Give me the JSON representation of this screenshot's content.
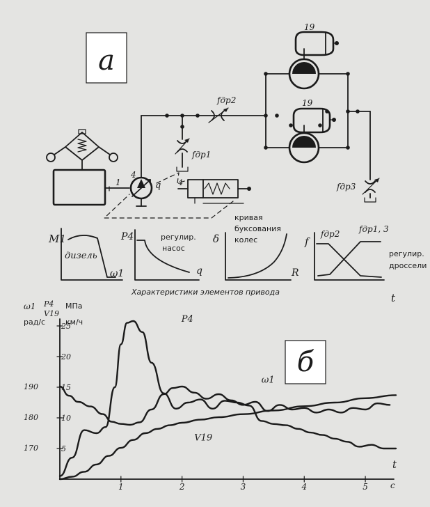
{
  "panel_a": {
    "label": "а",
    "components": {
      "diesel_ref": "1",
      "pump_ref": "4",
      "pump_symbol": "q",
      "regulator_ref": "4",
      "motor_top_ref": "19",
      "motor_bottom_ref": "19",
      "throttle_1": "fдр1",
      "throttle_2": "fдр2",
      "throttle_3": "fдр3"
    },
    "characteristics": {
      "caption": "Характеристики элементов привода",
      "t_label": "t",
      "diesel": {
        "y_label": "M1",
        "x_label": "ω1",
        "text": "дизель"
      },
      "pump": {
        "y_label": "P4",
        "x_label": "q",
        "text_line1": "регулир.",
        "text_line2": "насос"
      },
      "slip": {
        "y_label": "δ",
        "x_label": "R",
        "text_line1": "кривая",
        "text_line2": "буксования",
        "text_line3": "колес"
      },
      "throttles": {
        "y_label": "f",
        "curve1": "fдр2",
        "curve2": "fдр1, 3",
        "text_line1": "регулир.",
        "text_line2": "дроссели"
      }
    }
  },
  "panel_b": {
    "label": "б",
    "axis_headers": {
      "omega": "ω1",
      "p4": "P4",
      "v19": "V19",
      "omega_unit": "рад/с",
      "p_unit": "МПа",
      "v_unit": "км/ч"
    },
    "x_label": "t",
    "x_unit": "с",
    "chart_data": {
      "type": "line",
      "xlabel": "t",
      "x_unit": "с",
      "xlim": [
        0,
        5.5
      ],
      "x_ticks": [
        "1",
        "2",
        "3",
        "4",
        "5"
      ],
      "omega_ticks": [
        "170",
        "180",
        "190"
      ],
      "p_ticks": [
        "5",
        "10",
        "15",
        "20",
        "25"
      ],
      "series": [
        {
          "name": "P4",
          "x": [
            0,
            0.2,
            0.4,
            0.6,
            0.75,
            0.9,
            1.0,
            1.1,
            1.2,
            1.35,
            1.5,
            1.7,
            1.9,
            2.1,
            2.3,
            2.5,
            2.7,
            2.9,
            3.1,
            3.3,
            3.5,
            3.7,
            3.9,
            4.1,
            4.3,
            4.5,
            4.7,
            4.9,
            5.1,
            5.3,
            5.5
          ],
          "y": [
            0.5,
            3.5,
            8.0,
            7.5,
            8.5,
            15.0,
            22.0,
            25.5,
            25.8,
            24.0,
            19.0,
            14.0,
            11.5,
            12.5,
            13.0,
            11.5,
            12.8,
            12.5,
            12.0,
            9.5,
            9.0,
            8.8,
            8.2,
            7.6,
            7.2,
            6.6,
            6.1,
            5.3,
            5.6,
            5.0,
            5.0
          ]
        },
        {
          "name": "ω1",
          "x": [
            0,
            0.15,
            0.3,
            0.5,
            0.7,
            0.85,
            1.0,
            1.15,
            1.3,
            1.5,
            1.7,
            1.85,
            2.0,
            2.2,
            2.4,
            2.6,
            2.8,
            3.0,
            3.2,
            3.4,
            3.6,
            3.8,
            4.0,
            4.2,
            4.4,
            4.6,
            4.8,
            5.0,
            5.2,
            5.4
          ],
          "y": [
            190.0,
            187.0,
            185.0,
            183.5,
            181.0,
            178.5,
            177.8,
            177.5,
            178.3,
            182.5,
            187.5,
            189.5,
            190.0,
            188.0,
            186.0,
            187.5,
            185.5,
            184.0,
            185.0,
            182.0,
            184.0,
            182.5,
            183.0,
            181.5,
            182.5,
            181.5,
            183.0,
            182.5,
            184.5,
            184.0
          ]
        },
        {
          "name": "V19",
          "x": [
            0,
            0.2,
            0.4,
            0.6,
            0.8,
            1.0,
            1.2,
            1.4,
            1.6,
            1.8,
            2.0,
            2.3,
            2.6,
            3.0,
            3.5,
            4.0,
            4.5,
            5.0,
            5.5
          ],
          "y": [
            0.0,
            0.4,
            1.2,
            2.4,
            3.8,
            5.1,
            6.4,
            7.5,
            8.2,
            8.8,
            9.2,
            9.7,
            10.1,
            10.6,
            11.2,
            11.9,
            12.5,
            13.2,
            13.7
          ]
        }
      ]
    }
  }
}
